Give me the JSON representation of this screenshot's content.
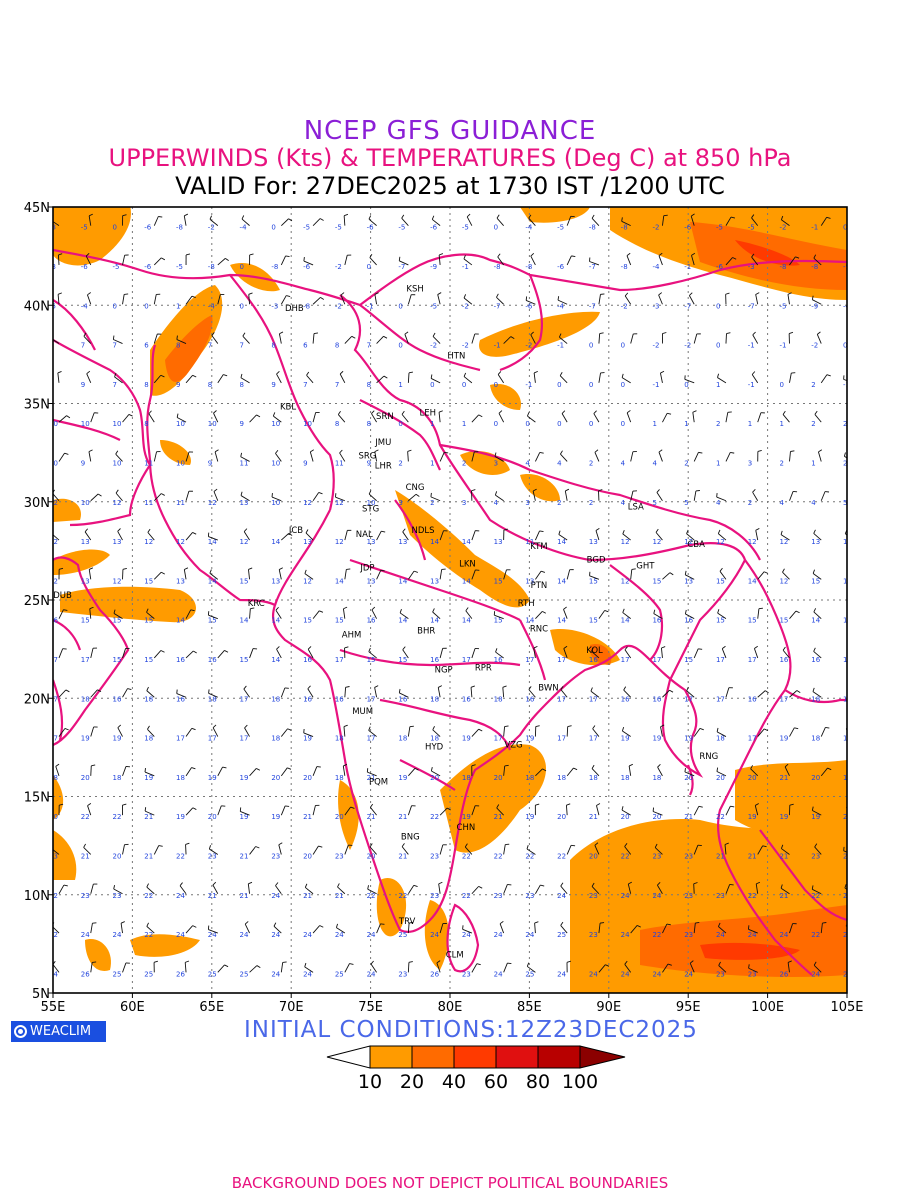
{
  "title": {
    "line1": "NCEP GFS GUIDANCE",
    "line2": "UPPERWINDS (Kts) & TEMPERATURES (Deg C) at 850 hPa",
    "line3": "VALID For: 27DEC2025 at 1730 IST /1200 UTC"
  },
  "axes": {
    "lat_labels": [
      "45N",
      "40N",
      "35N",
      "30N",
      "25N",
      "20N",
      "15N",
      "10N",
      "5N"
    ],
    "lon_labels": [
      "55E",
      "60E",
      "65E",
      "70E",
      "75E",
      "80E",
      "85E",
      "90E",
      "95E",
      "100E",
      "105E"
    ],
    "lon_range": [
      55,
      105
    ],
    "lat_range": [
      5,
      45
    ],
    "grid": "dotted, every 5 degrees"
  },
  "stations": [
    {
      "code": "KSH",
      "lon": 77.8,
      "lat": 40.7
    },
    {
      "code": "DHB",
      "lon": 70.2,
      "lat": 39.7
    },
    {
      "code": "HTN",
      "lon": 80.4,
      "lat": 37.3
    },
    {
      "code": "KBL",
      "lon": 69.8,
      "lat": 34.7
    },
    {
      "code": "SRN",
      "lon": 75.9,
      "lat": 34.2
    },
    {
      "code": "LEH",
      "lon": 78.6,
      "lat": 34.4
    },
    {
      "code": "JMU",
      "lon": 75.8,
      "lat": 32.9
    },
    {
      "code": "SRG",
      "lon": 74.8,
      "lat": 32.2
    },
    {
      "code": "LHR",
      "lon": 75.8,
      "lat": 31.7
    },
    {
      "code": "CNG",
      "lon": 77.8,
      "lat": 30.6
    },
    {
      "code": "STG",
      "lon": 75.0,
      "lat": 29.5
    },
    {
      "code": "JCB",
      "lon": 70.3,
      "lat": 28.4
    },
    {
      "code": "NDLS",
      "lon": 78.3,
      "lat": 28.4
    },
    {
      "code": "NAL",
      "lon": 74.6,
      "lat": 28.2
    },
    {
      "code": "LSA",
      "lon": 91.7,
      "lat": 29.6
    },
    {
      "code": "KTM",
      "lon": 85.6,
      "lat": 27.6
    },
    {
      "code": "CBA",
      "lon": 95.5,
      "lat": 27.7
    },
    {
      "code": "BGD",
      "lon": 89.2,
      "lat": 26.9
    },
    {
      "code": "GHT",
      "lon": 92.3,
      "lat": 26.6
    },
    {
      "code": "LKN",
      "lon": 81.1,
      "lat": 26.7
    },
    {
      "code": "JDP",
      "lon": 74.8,
      "lat": 26.5
    },
    {
      "code": "PTN",
      "lon": 85.6,
      "lat": 25.6
    },
    {
      "code": "DUB",
      "lon": 55.6,
      "lat": 25.1
    },
    {
      "code": "RTH",
      "lon": 84.8,
      "lat": 24.7
    },
    {
      "code": "KRC",
      "lon": 67.8,
      "lat": 24.7
    },
    {
      "code": "AHM",
      "lon": 73.8,
      "lat": 23.1
    },
    {
      "code": "BHR",
      "lon": 78.5,
      "lat": 23.3
    },
    {
      "code": "RNC",
      "lon": 85.6,
      "lat": 23.4
    },
    {
      "code": "KOL",
      "lon": 89.1,
      "lat": 22.3
    },
    {
      "code": "NGP",
      "lon": 79.6,
      "lat": 21.3
    },
    {
      "code": "RPR",
      "lon": 82.1,
      "lat": 21.4
    },
    {
      "code": "BWN",
      "lon": 86.2,
      "lat": 20.4
    },
    {
      "code": "MUM",
      "lon": 74.5,
      "lat": 19.2
    },
    {
      "code": "HYD",
      "lon": 79.0,
      "lat": 17.4
    },
    {
      "code": "VZG",
      "lon": 84.0,
      "lat": 17.5
    },
    {
      "code": "RNG",
      "lon": 96.3,
      "lat": 16.9
    },
    {
      "code": "PQM",
      "lon": 75.5,
      "lat": 15.6
    },
    {
      "code": "CHN",
      "lon": 81.0,
      "lat": 13.3
    },
    {
      "code": "BNG",
      "lon": 77.5,
      "lat": 12.8
    },
    {
      "code": "TRV",
      "lon": 77.3,
      "lat": 8.5
    },
    {
      "code": "CLM",
      "lon": 80.3,
      "lat": 6.8
    }
  ],
  "legend": {
    "units": "Kts",
    "levels": [
      "10",
      "20",
      "40",
      "60",
      "80",
      "100"
    ],
    "colors": [
      "#ff9b00",
      "#ff6b00",
      "#ff3a00",
      "#e01010",
      "#b80000",
      "#8b0000"
    ]
  },
  "logo": "WEACLIM",
  "initial_conditions": "INITIAL  CONDITIONS:12Z23DEC2025",
  "footer": "BACKGROUND DOES NOT DEPICT POLITICAL BOUNDARIES",
  "colors": {
    "boundary": "#e8127f",
    "wind_shading": "#ff9b00",
    "temperature_text": "#2244dd",
    "barb": "#000000"
  }
}
